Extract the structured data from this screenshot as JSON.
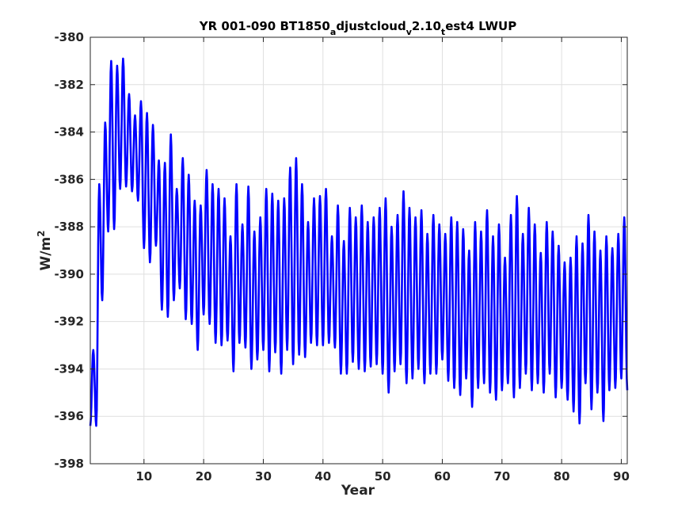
{
  "chart_data": {
    "type": "line",
    "title": {
      "part1": "YR 001-090 BT1850",
      "sub1": "a",
      "part2": "djustcloud",
      "sub2": "v",
      "part3": "2.10",
      "sub3": "t",
      "part4": "est4 LWUP"
    },
    "xlabel": "Year",
    "ylabel": {
      "base": "W/m",
      "sup": "2"
    },
    "xlim": [
      1,
      91
    ],
    "ylim": [
      -398,
      -380
    ],
    "xticks": [
      10,
      20,
      30,
      40,
      50,
      60,
      70,
      80,
      90
    ],
    "yticks": [
      -398,
      -396,
      -394,
      -392,
      -390,
      -388,
      -386,
      -384,
      -382,
      -380
    ],
    "grid": true,
    "line_color": "#0000ff",
    "series": [
      {
        "name": "",
        "cycle": "annual",
        "annual_max": [
          -393.2,
          -386.2,
          -383.6,
          -381.0,
          -381.2,
          -380.9,
          -382.4,
          -383.3,
          -382.7,
          -383.2,
          -383.7,
          -385.2,
          -385.3,
          -384.1,
          -386.4,
          -385.1,
          -385.8,
          -386.9,
          -387.1,
          -385.6,
          -386.2,
          -386.4,
          -386.8,
          -388.4,
          -386.2,
          -387.9,
          -386.3,
          -388.2,
          -387.6,
          -386.4,
          -386.6,
          -386.9,
          -386.8,
          -385.5,
          -385.1,
          -386.2,
          -387.8,
          -386.8,
          -386.7,
          -386.4,
          -388.4,
          -387.1,
          -388.6,
          -387.2,
          -387.6,
          -387.1,
          -387.8,
          -387.6,
          -387.2,
          -386.8,
          -388.0,
          -387.5,
          -386.5,
          -387.2,
          -387.6,
          -387.3,
          -388.3,
          -387.5,
          -387.9,
          -388.3,
          -387.6,
          -387.8,
          -388.1,
          -389.0,
          -387.8,
          -388.2,
          -387.3,
          -388.4,
          -387.9,
          -389.3,
          -387.5,
          -386.7,
          -388.3,
          -387.2,
          -387.9,
          -389.1,
          -387.8,
          -388.2,
          -388.8,
          -389.5,
          -389.3,
          -388.4,
          -388.7,
          -387.5,
          -388.2,
          -389.0,
          -388.4,
          -388.9,
          -388.3,
          -387.6
        ],
        "annual_min": [
          -396.4,
          -391.1,
          -388.2,
          -388.1,
          -386.4,
          -386.3,
          -386.5,
          -386.9,
          -388.9,
          -389.5,
          -388.8,
          -391.5,
          -391.8,
          -391.1,
          -390.6,
          -391.9,
          -392.1,
          -393.2,
          -391.7,
          -392.1,
          -392.9,
          -393.0,
          -392.8,
          -394.1,
          -392.9,
          -393.1,
          -394.0,
          -393.6,
          -393.2,
          -394.1,
          -393.3,
          -394.2,
          -393.2,
          -393.8,
          -393.4,
          -393.5,
          -392.9,
          -393.0,
          -393.0,
          -392.9,
          -393.1,
          -394.2,
          -394.2,
          -393.7,
          -394.0,
          -394.1,
          -393.9,
          -393.8,
          -394.2,
          -395.0,
          -394.1,
          -393.8,
          -394.6,
          -394.4,
          -394.0,
          -394.6,
          -394.2,
          -394.2,
          -393.6,
          -394.5,
          -394.8,
          -395.1,
          -394.4,
          -395.6,
          -394.8,
          -394.6,
          -395.0,
          -395.3,
          -394.9,
          -394.6,
          -395.2,
          -394.8,
          -394.2,
          -394.9,
          -394.6,
          -395.0,
          -394.2,
          -395.2,
          -394.8,
          -395.3,
          -395.8,
          -396.3,
          -394.6,
          -395.7,
          -395.0,
          -396.2,
          -394.9,
          -394.8,
          -394.4,
          -394.9
        ]
      }
    ]
  }
}
